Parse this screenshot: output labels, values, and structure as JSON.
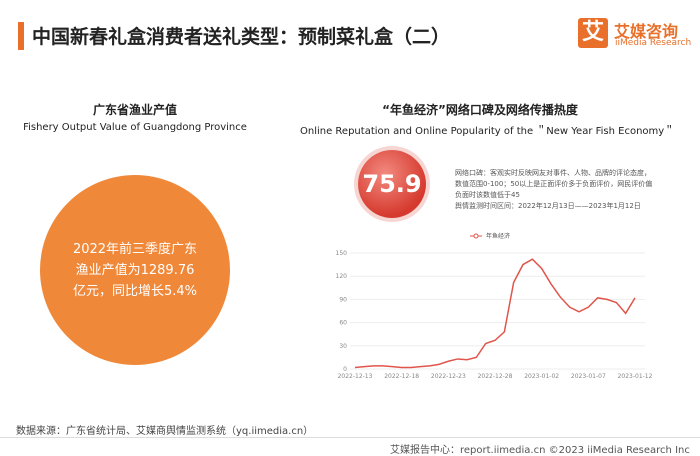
{
  "header": {
    "title": "中国新春礼盒消费者送礼类型：预制菜礼盒（二）",
    "logo_mark": "艾",
    "logo": "艾媒咨询",
    "logo_en": "iiMedia Research"
  },
  "left": {
    "title": "广东省渔业产值",
    "subtitle": "Fishery Output Value of Guangdong Province",
    "highlight": "2022年前三季度广东渔业产值为1289.76亿元，同比增长5.4%"
  },
  "right": {
    "title": "“年鱼经济”网络口碑及网络传播热度",
    "subtitle": "Online Reputation and Online Popularity of the ＂New Year Fish Economy＂",
    "score": "75.9",
    "description": "网络口碑：客观实时反映网友对事件、人物、品牌的评论态度，数值范围0-100；50以上是正面评价多于负面评价，网民评价偏负面时该数值低于45",
    "period": "舆情监测时间区间：2022年12月13日——2023年1月12日"
  },
  "chart_data": {
    "type": "line",
    "categories": [
      "2022-12-13",
      null,
      null,
      null,
      null,
      "2022-12-18",
      null,
      null,
      null,
      null,
      "2022-12-23",
      null,
      null,
      null,
      null,
      "2022-12-28",
      null,
      null,
      null,
      null,
      "2023-01-02",
      null,
      null,
      null,
      null,
      "2023-01-07",
      null,
      null,
      null,
      null,
      "2023-01-12"
    ],
    "series": [
      {
        "name": "年鱼经济",
        "color": "#e0554b",
        "values": [
          2,
          3,
          4,
          4,
          3,
          2,
          2,
          3,
          4,
          6,
          10,
          13,
          12,
          15,
          33,
          37,
          48,
          112,
          135,
          142,
          130,
          110,
          93,
          80,
          74,
          80,
          92,
          90,
          86,
          72,
          92
        ]
      }
    ],
    "ylim": [
      0,
      150
    ],
    "yticks": [
      0,
      30,
      60,
      90,
      120,
      150
    ],
    "grid": true
  },
  "footer": {
    "source": "数据来源：广东省统计局、艾媒商舆情监测系统（yq.iimedia.cn）",
    "credit": "艾媒报告中心：report.iimedia.cn  ©2023  iiMedia Research  Inc"
  }
}
